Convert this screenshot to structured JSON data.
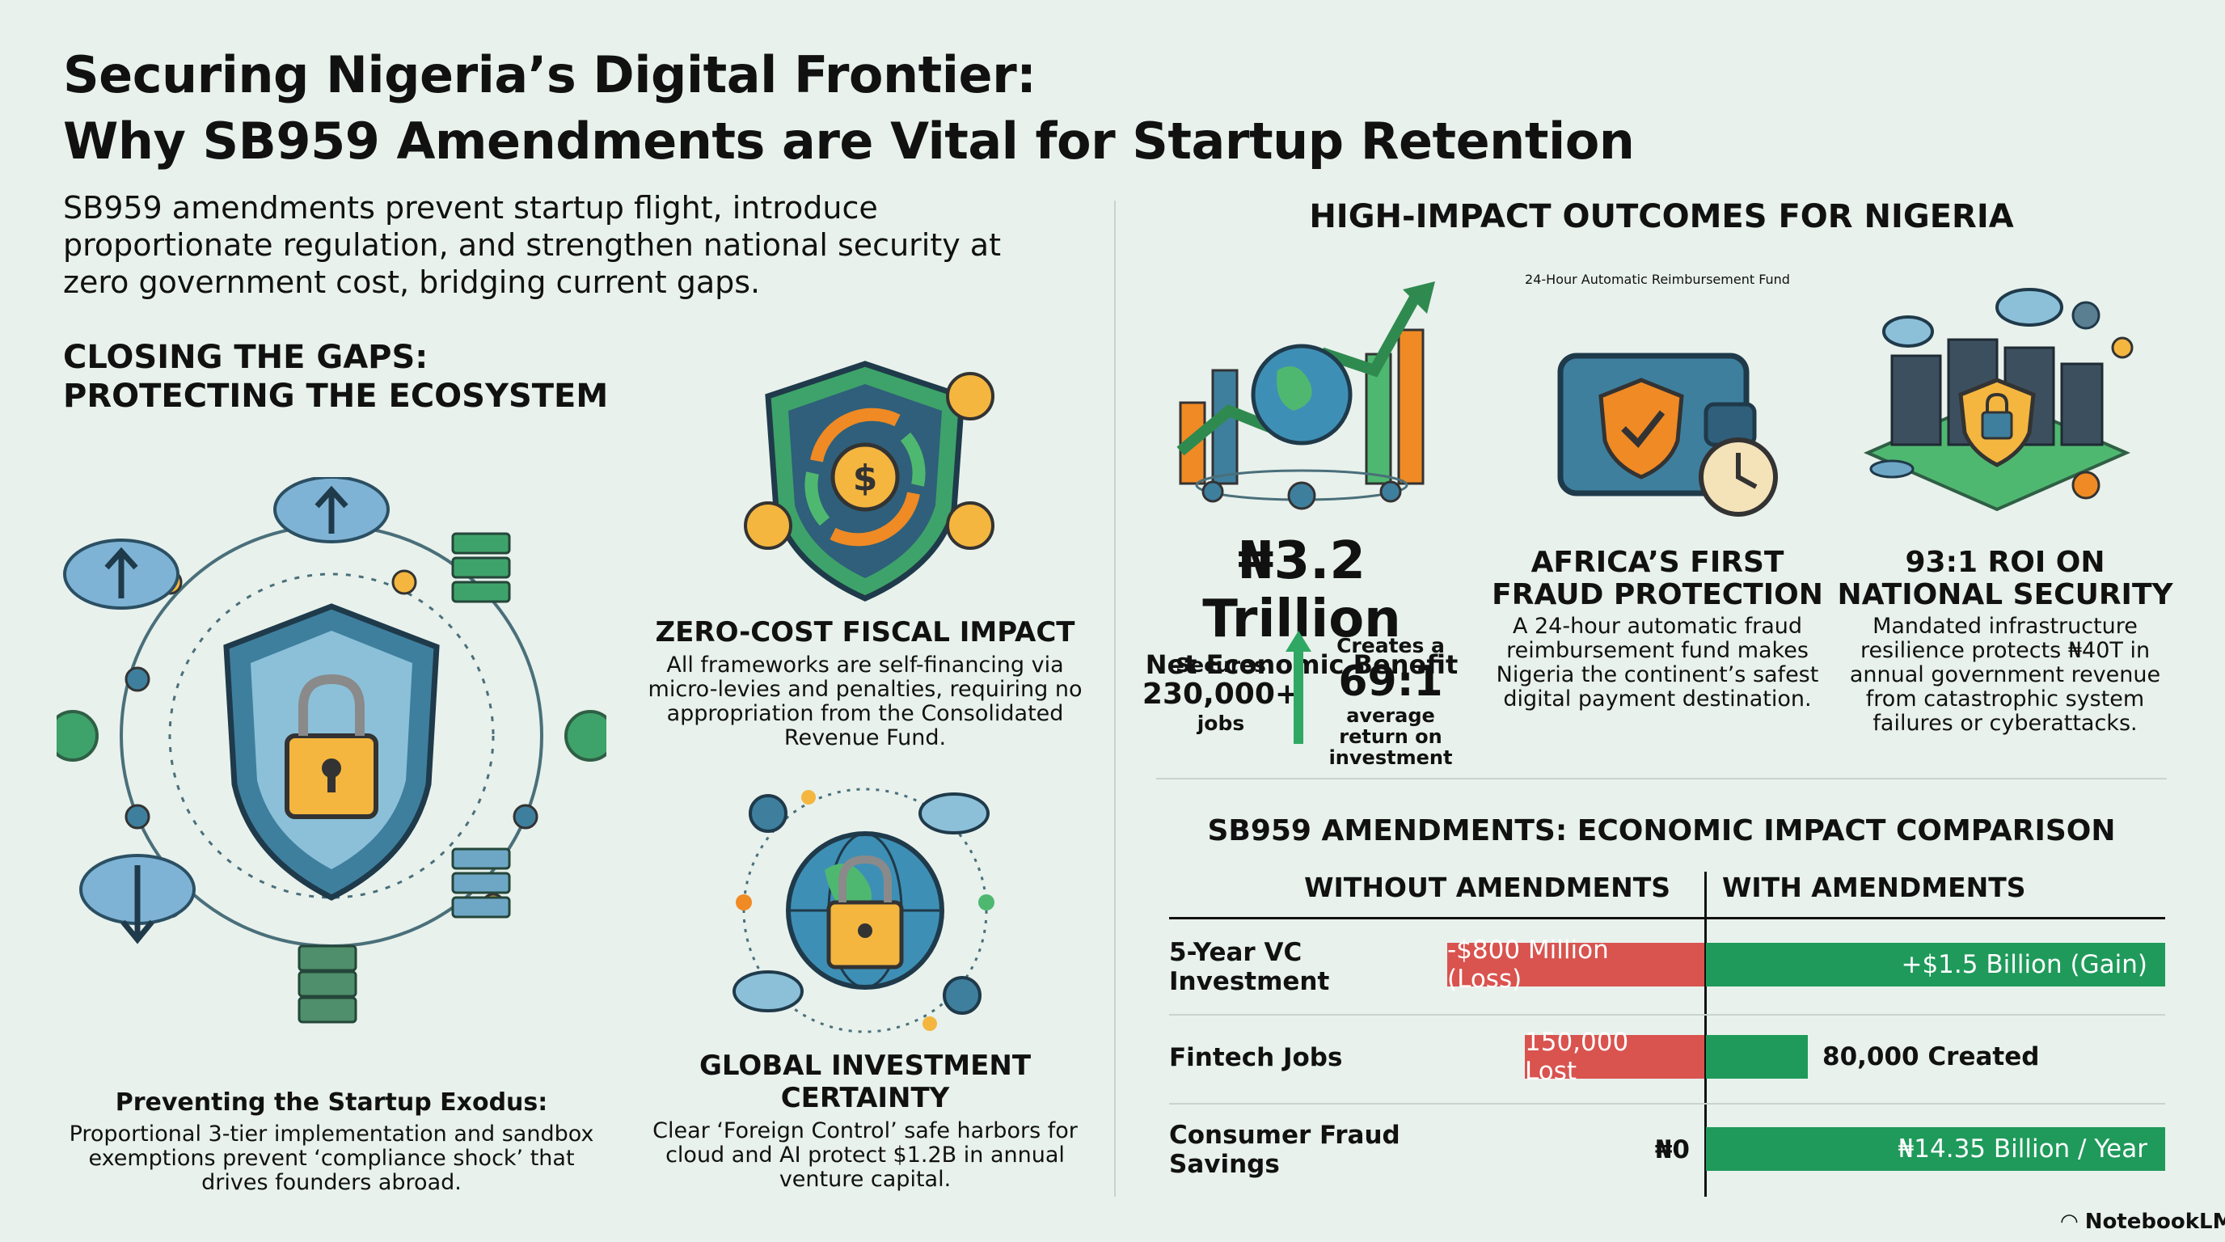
{
  "title": {
    "line1": "Securing Nigeria’s Digital Frontier:",
    "line2": "Why SB959 Amendments are Vital for Startup Retention"
  },
  "intro": "SB959 amendments prevent startup flight, introduce proportionate regulation, and strengthen national security at zero government cost, bridging current gaps.",
  "left": {
    "heading_line1": "CLOSING THE GAPS:",
    "heading_line2": "PROTECTING THE ECOSYSTEM",
    "exodus": {
      "title": "Preventing the Startup Exodus:",
      "text": "Proportional 3-tier implementation and sandbox exemptions prevent ‘compliance shock’ that drives founders abroad."
    },
    "fiscal": {
      "title": "ZERO-COST FISCAL IMPACT",
      "text": "All frameworks are self-financing via micro-levies and penalties, requiring no appropriation from the Consolidated Revenue Fund."
    },
    "investment": {
      "title_line1": "GLOBAL INVESTMENT",
      "title_line2": "CERTAINTY",
      "text": "Clear ‘Foreign Control’ safe harbors for cloud and AI protect $1.2B in annual venture capital."
    }
  },
  "right": {
    "heading": "HIGH-IMPACT OUTCOMES FOR NIGERIA",
    "economic": {
      "value": "₦3.2 Trillion",
      "label": "Net Economic Benefit",
      "secures_label": "Secures",
      "jobs_value": "230,000+",
      "jobs_label": "jobs",
      "creates_label": "Creates a",
      "ratio": "69:1",
      "ratio_label": "average return on investment"
    },
    "fraud": {
      "top_label": "24-Hour Automatic Reimbursement Fund",
      "title_line1": "AFRICA’S FIRST",
      "title_line2": "FRAUD PROTECTION",
      "text": "A 24-hour automatic fraud reimbursement fund makes Nigeria the continent’s safest digital payment destination."
    },
    "security": {
      "title_line1": "93:1 ROI ON",
      "title_line2": "NATIONAL SECURITY",
      "text": "Mandated infrastructure resilience protects ₦40T in annual government revenue from catastrophic system failures or cyberattacks."
    }
  },
  "comparison": {
    "heading": "SB959 AMENDMENTS: ECONOMIC IMPACT COMPARISON",
    "col_without": "WITHOUT AMENDMENTS",
    "col_with": "WITH AMENDMENTS",
    "rows": [
      {
        "label": "5-Year VC Investment",
        "without": "-$800 Million (Loss)",
        "with": "+$1.5 Billion (Gain)"
      },
      {
        "label": "Fintech Jobs",
        "without": "150,000 Lost",
        "with": "80,000 Created"
      },
      {
        "label": "Consumer Fraud Savings",
        "without": "₦0",
        "with": "₦14.35 Billion / Year"
      }
    ]
  },
  "brand": "NotebookLM",
  "colors": {
    "background": "#e8f1ec",
    "loss_red": "#d9534f",
    "gain_green": "#1f9a5b",
    "shield_blue": "#3e7f9e",
    "lock_gold": "#f4b63f"
  }
}
